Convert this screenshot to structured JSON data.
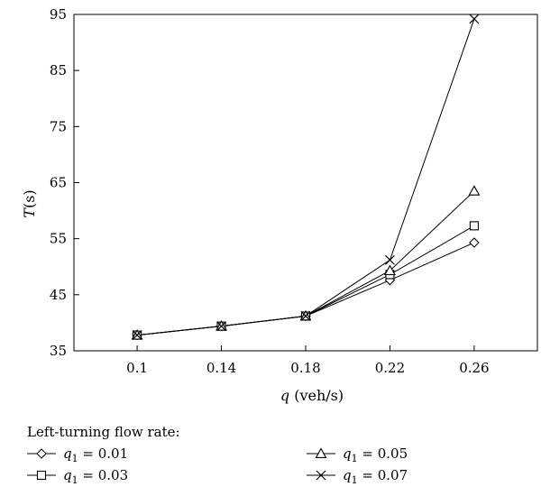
{
  "chart_data": {
    "type": "line",
    "xlabel_var": "q",
    "xlabel_unit": "(veh/s)",
    "ylabel_var": "T",
    "ylabel_unit": "(s)",
    "x": [
      0.1,
      0.14,
      0.18,
      0.22,
      0.26
    ],
    "x_tick_labels": [
      "0.1",
      "0.14",
      "0.18",
      "0.22",
      "0.26"
    ],
    "xlim": [
      0.07,
      0.29
    ],
    "ylim": [
      35,
      95
    ],
    "y_ticks": [
      35,
      45,
      55,
      65,
      75,
      85,
      95
    ],
    "grid": false,
    "legend": {
      "title": "Left-turning flow rate:",
      "placement": "bottom"
    },
    "series": [
      {
        "name": "q1 = 0.01",
        "label_var": "q",
        "label_sub": "1",
        "label_value": "= 0.01",
        "marker": "diamond",
        "values": [
          37.8,
          39.4,
          41.2,
          47.6,
          54.3
        ]
      },
      {
        "name": "q1 = 0.03",
        "label_var": "q",
        "label_sub": "1",
        "label_value": "= 0.03",
        "marker": "square",
        "values": [
          37.8,
          39.4,
          41.2,
          48.6,
          57.3
        ]
      },
      {
        "name": "q1 = 0.05",
        "label_var": "q",
        "label_sub": "1",
        "label_value": "= 0.05",
        "marker": "triangle",
        "values": [
          37.8,
          39.4,
          41.2,
          49.3,
          63.5
        ]
      },
      {
        "name": "q1 = 0.07",
        "label_var": "q",
        "label_sub": "1",
        "label_value": "= 0.07",
        "marker": "x",
        "values": [
          37.8,
          39.4,
          41.2,
          51.2,
          94.2
        ]
      }
    ]
  }
}
